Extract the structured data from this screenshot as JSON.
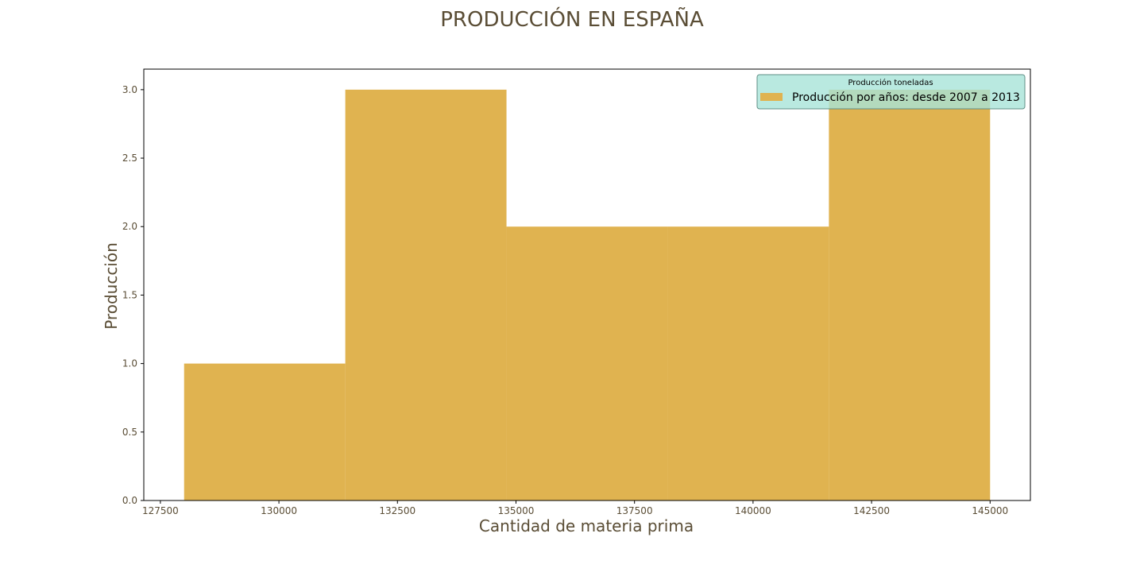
{
  "chart_data": {
    "type": "bar",
    "title": "PRODUCCIÓN EN ESPAÑA",
    "xlabel": "Cantidad de materia prima",
    "ylabel": "Producción",
    "legend_title": "Producción toneladas",
    "legend_position": "top-right",
    "grid": false,
    "bin_edges": [
      128000,
      131400,
      134800,
      138200,
      141600,
      145000
    ],
    "series": [
      {
        "name": "Producción por años: desde 2007 a 2013",
        "values": [
          1,
          3,
          2,
          2,
          3
        ]
      }
    ],
    "xlim": [
      127150,
      145850
    ],
    "ylim": [
      0,
      3.15
    ],
    "xticks": [
      127500,
      130000,
      132500,
      135000,
      137500,
      140000,
      142500,
      145000
    ],
    "yticks": [
      0.0,
      0.5,
      1.0,
      1.5,
      2.0,
      2.5,
      3.0
    ],
    "xtick_labels": [
      "127500",
      "130000",
      "132500",
      "135000",
      "137500",
      "140000",
      "142500",
      "145000"
    ],
    "ytick_labels": [
      "0.0",
      "0.5",
      "1.0",
      "1.5",
      "2.0",
      "2.5",
      "3.0"
    ],
    "colors": {
      "bar": "#e0b350",
      "text": "#5a4d35",
      "legend_bg": "#a8e3d8",
      "legend_border": "#5f8f86",
      "axis": "#000000"
    }
  }
}
